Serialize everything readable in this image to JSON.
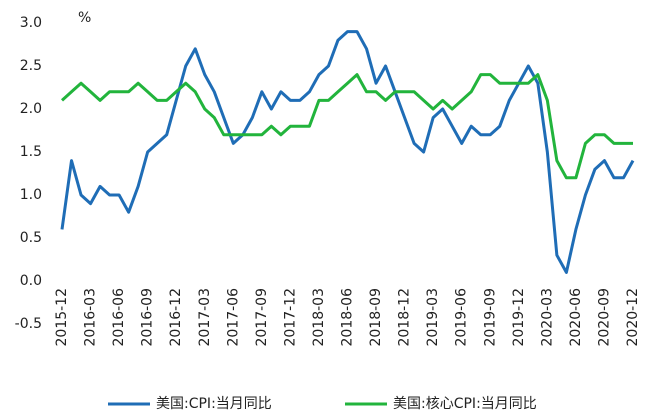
{
  "chart_data": {
    "type": "line",
    "unit": "%",
    "categories": [
      "2015-12",
      null,
      null,
      "2016-03",
      null,
      null,
      "2016-06",
      null,
      null,
      "2016-09",
      null,
      null,
      "2016-12",
      null,
      null,
      "2017-03",
      null,
      null,
      "2017-06",
      null,
      null,
      "2017-09",
      null,
      null,
      "2017-12",
      null,
      null,
      "2018-03",
      null,
      null,
      "2018-06",
      null,
      null,
      "2018-09",
      null,
      null,
      "2018-12",
      null,
      null,
      "2019-03",
      null,
      null,
      "2019-06",
      null,
      null,
      "2019-09",
      null,
      null,
      "2019-12",
      null,
      null,
      "2020-03",
      null,
      null,
      "2020-06",
      null,
      null,
      "2020-09",
      null,
      null,
      "2020-12"
    ],
    "series": [
      {
        "name": "美国:CPI:当月同比",
        "color": "#1f6db6",
        "values": [
          0.6,
          1.4,
          1.0,
          0.9,
          1.1,
          1.0,
          1.0,
          0.8,
          1.1,
          1.5,
          1.6,
          1.7,
          2.1,
          2.5,
          2.7,
          2.4,
          2.2,
          1.9,
          1.6,
          1.7,
          1.9,
          2.2,
          2.0,
          2.2,
          2.1,
          2.1,
          2.2,
          2.4,
          2.5,
          2.8,
          2.9,
          2.9,
          2.7,
          2.3,
          2.5,
          2.2,
          1.9,
          1.6,
          1.5,
          1.9,
          2.0,
          1.8,
          1.6,
          1.8,
          1.7,
          1.7,
          1.8,
          2.1,
          2.3,
          2.5,
          2.3,
          1.5,
          0.3,
          0.1,
          0.6,
          1.0,
          1.3,
          1.4,
          1.2,
          1.2,
          1.4
        ]
      },
      {
        "name": "美国:核心CPI:当月同比",
        "color": "#22b43c",
        "values": [
          2.1,
          2.2,
          2.3,
          2.2,
          2.1,
          2.2,
          2.2,
          2.2,
          2.3,
          2.2,
          2.1,
          2.1,
          2.2,
          2.3,
          2.2,
          2.0,
          1.9,
          1.7,
          1.7,
          1.7,
          1.7,
          1.7,
          1.8,
          1.7,
          1.8,
          1.8,
          1.8,
          2.1,
          2.1,
          2.2,
          2.3,
          2.4,
          2.2,
          2.2,
          2.1,
          2.2,
          2.2,
          2.2,
          2.1,
          2.0,
          2.1,
          2.0,
          2.1,
          2.2,
          2.4,
          2.4,
          2.3,
          2.3,
          2.3,
          2.3,
          2.4,
          2.1,
          1.4,
          1.2,
          1.2,
          1.6,
          1.7,
          1.7,
          1.6,
          1.6,
          1.6
        ]
      }
    ],
    "ylim": [
      -0.5,
      3.0
    ],
    "yticks": [
      {
        "value": -0.5,
        "label": "-0.5"
      },
      {
        "value": 0,
        "label": "0.0"
      },
      {
        "value": 0.5,
        "label": "0.5"
      },
      {
        "value": 1,
        "label": "1.0"
      },
      {
        "value": 1.5,
        "label": "1.5"
      },
      {
        "value": 2,
        "label": "2.0"
      },
      {
        "value": 2.5,
        "label": "2.5"
      },
      {
        "value": 3,
        "label": "3.0"
      }
    ],
    "grid": false,
    "legend": "bottom"
  }
}
